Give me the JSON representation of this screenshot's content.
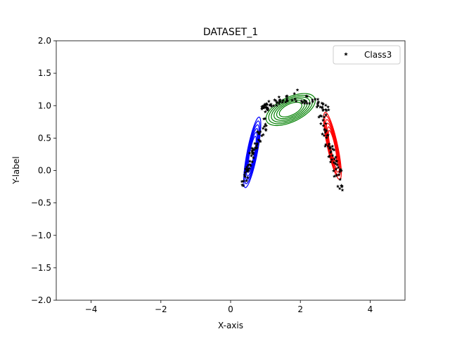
{
  "chart_data": {
    "type": "scatter",
    "title": "DATASET_1",
    "xlabel": "X-axis",
    "ylabel": "Y-label",
    "xlim": [
      -5,
      5
    ],
    "ylim": [
      -2,
      2
    ],
    "xticks": [
      -4,
      -2,
      0,
      2,
      4
    ],
    "yticks": [
      -2.0,
      -1.5,
      -1.0,
      -0.5,
      0.0,
      0.5,
      1.0,
      1.5,
      2.0
    ],
    "xtick_labels": [
      "−4",
      "−2",
      "0",
      "2",
      "4"
    ],
    "ytick_labels": [
      "−2.0",
      "−1.5",
      "−1.0",
      "−0.5",
      "0.0",
      "0.5",
      "1.0",
      "1.5",
      "2.0"
    ],
    "grid": false,
    "legend": {
      "position": "top-right",
      "entries": [
        {
          "label": "Class3",
          "marker": "star",
          "color": "#000000"
        }
      ]
    },
    "scatter_clusters": [
      {
        "color": "#000000",
        "marker": "star",
        "segment": {
          "x_start": 0.3,
          "y_start": -0.27,
          "x_end": 1.0,
          "y_end": 0.78,
          "spread": 0.06,
          "count": 60
        }
      },
      {
        "color": "#000000",
        "marker": "star",
        "segment": {
          "x_start": 2.55,
          "y_start": 0.85,
          "x_end": 3.2,
          "y_end": -0.28,
          "spread": 0.06,
          "count": 60
        }
      },
      {
        "color": "#000000",
        "marker": "star",
        "arc": {
          "cx": 1.85,
          "cy": 0.95,
          "rx": 0.9,
          "ry": 0.22,
          "count": 80
        }
      }
    ],
    "contour_groups": [
      {
        "color": "#0000ff",
        "center": [
          0.62,
          0.28
        ],
        "major": 0.58,
        "minor": 0.14,
        "angle_deg": 69,
        "levels": 6
      },
      {
        "color": "#008000",
        "center": [
          1.72,
          0.94
        ],
        "major": 0.72,
        "minor": 0.2,
        "angle_deg": 12,
        "levels": 6
      },
      {
        "color": "#ff0000",
        "center": [
          2.92,
          0.38
        ],
        "major": 0.56,
        "minor": 0.14,
        "angle_deg": -67,
        "levels": 6
      }
    ]
  }
}
